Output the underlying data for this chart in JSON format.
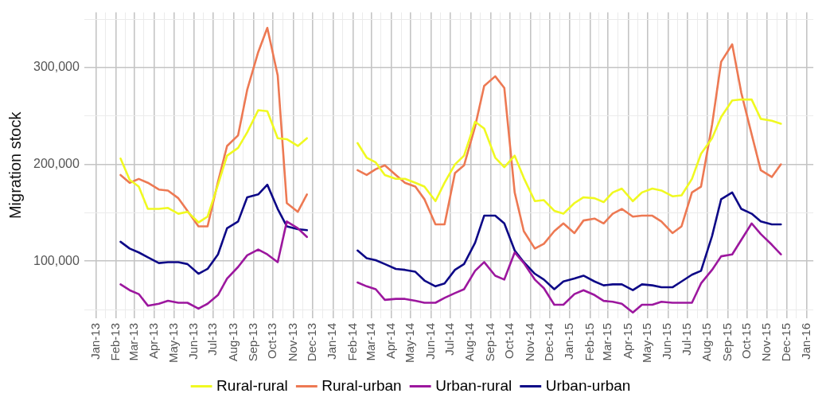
{
  "chart_data": {
    "type": "line",
    "x": [
      "2013-02-08",
      "2013-02-22",
      "2013-03-08",
      "2013-03-22",
      "2013-04-08",
      "2013-04-22",
      "2013-05-08",
      "2013-05-22",
      "2013-06-08",
      "2013-06-22",
      "2013-07-08",
      "2013-07-22",
      "2013-08-08",
      "2013-08-22",
      "2013-09-08",
      "2013-09-22",
      "2013-10-08",
      "2013-10-22",
      "2013-11-08",
      "2013-11-22",
      "2013-12-08",
      "2013-12-22",
      "2014-01-08",
      "2014-01-22",
      "2014-02-08",
      "2014-02-22",
      "2014-03-08",
      "2014-03-22",
      "2014-04-08",
      "2014-04-22",
      "2014-05-08",
      "2014-05-22",
      "2014-06-08",
      "2014-06-22",
      "2014-07-08",
      "2014-07-22",
      "2014-08-08",
      "2014-08-22",
      "2014-09-08",
      "2014-09-22",
      "2014-10-08",
      "2014-10-22",
      "2014-11-08",
      "2014-11-22",
      "2014-12-08",
      "2014-12-22",
      "2015-01-08",
      "2015-01-22",
      "2015-02-08",
      "2015-02-22",
      "2015-03-08",
      "2015-03-22",
      "2015-04-08",
      "2015-04-22",
      "2015-05-08",
      "2015-05-22",
      "2015-06-08",
      "2015-06-22",
      "2015-07-08",
      "2015-07-22",
      "2015-08-08",
      "2015-08-22",
      "2015-09-08",
      "2015-09-22",
      "2015-10-08",
      "2015-10-22",
      "2015-11-08",
      "2015-11-22"
    ],
    "series": [
      {
        "name": "Rural-rural",
        "color": "#f0f921",
        "values": [
          206000,
          184000,
          177000,
          154000,
          154000,
          155000,
          149000,
          151000,
          140000,
          146000,
          179000,
          209000,
          217000,
          233000,
          256000,
          255000,
          227000,
          226000,
          219000,
          227000,
          null,
          null,
          null,
          null,
          222000,
          207000,
          202000,
          189000,
          185000,
          185000,
          181000,
          177000,
          162000,
          181000,
          200000,
          209000,
          244000,
          237000,
          207000,
          197000,
          209000,
          186000,
          162000,
          163000,
          152000,
          149000,
          160000,
          166000,
          165000,
          161000,
          171000,
          175000,
          162000,
          171000,
          175000,
          173000,
          167000,
          168000,
          185000,
          211000,
          227000,
          249000,
          266000,
          267000,
          267000,
          247000,
          245000,
          242000
        ]
      },
      {
        "name": "Rural-urban",
        "color": "#ed7953",
        "values": [
          189000,
          181000,
          185000,
          181000,
          174000,
          173000,
          165000,
          152000,
          136000,
          136000,
          182000,
          219000,
          230000,
          277000,
          316000,
          341000,
          292000,
          160000,
          151000,
          169000,
          null,
          null,
          null,
          null,
          194000,
          189000,
          195000,
          199000,
          189000,
          181000,
          177000,
          164000,
          138000,
          138000,
          191000,
          199000,
          239000,
          281000,
          291000,
          279000,
          171000,
          131000,
          113000,
          118000,
          131000,
          139000,
          129000,
          142000,
          144000,
          139000,
          149000,
          154000,
          146000,
          147000,
          147000,
          141000,
          129000,
          136000,
          171000,
          177000,
          241000,
          306000,
          324000,
          274000,
          231000,
          194000,
          187000,
          200000
        ]
      },
      {
        "name": "Urban-rural",
        "color": "#9c179e",
        "values": [
          76000,
          70000,
          66000,
          54000,
          56000,
          59000,
          57000,
          57000,
          51000,
          56000,
          65000,
          82000,
          94000,
          106000,
          112000,
          107000,
          99000,
          141000,
          134000,
          125000,
          null,
          null,
          null,
          null,
          78000,
          74000,
          71000,
          60000,
          61000,
          61000,
          59000,
          57000,
          57000,
          62000,
          67000,
          71000,
          90000,
          99000,
          85000,
          81000,
          109000,
          98000,
          81000,
          72000,
          55000,
          55000,
          66000,
          70000,
          65000,
          59000,
          58000,
          56000,
          47000,
          55000,
          55000,
          58000,
          57000,
          57000,
          57000,
          77000,
          91000,
          105000,
          107000,
          122000,
          139000,
          128000,
          117000,
          107000
        ]
      },
      {
        "name": "Urban-urban",
        "color": "#0d0887",
        "values": [
          120000,
          113000,
          109000,
          104000,
          98000,
          99000,
          99000,
          97000,
          87000,
          92000,
          107000,
          134000,
          141000,
          166000,
          169000,
          179000,
          154000,
          136000,
          133000,
          132000,
          null,
          null,
          null,
          null,
          111000,
          103000,
          101000,
          97000,
          92000,
          91000,
          89000,
          80000,
          74000,
          77000,
          91000,
          97000,
          119000,
          147000,
          147000,
          139000,
          111000,
          99000,
          87000,
          81000,
          71000,
          79000,
          82000,
          85000,
          79000,
          75000,
          76000,
          76000,
          70000,
          76000,
          75000,
          73000,
          73000,
          79000,
          86000,
          90000,
          126000,
          164000,
          171000,
          154000,
          149000,
          141000,
          138000,
          138000
        ]
      }
    ],
    "ylabel": "Migration stock",
    "ylim": [
      41000,
      357000
    ],
    "yticks": [
      {
        "value": 50000,
        "label": null
      },
      {
        "value": 100000,
        "label": "100,000"
      },
      {
        "value": 150000,
        "label": null
      },
      {
        "value": 200000,
        "label": "200,000"
      },
      {
        "value": 250000,
        "label": null
      },
      {
        "value": 300000,
        "label": "300,000"
      },
      {
        "value": 350000,
        "label": null
      }
    ],
    "xlim": [
      "2012-12-14",
      "2016-01-11"
    ],
    "xticks": [
      {
        "value": "2013-01-01",
        "label": "Jan-13"
      },
      {
        "value": "2013-01-16",
        "label": null
      },
      {
        "value": "2013-02-01",
        "label": "Feb-13"
      },
      {
        "value": "2013-02-15",
        "label": null
      },
      {
        "value": "2013-03-01",
        "label": "Mar-13"
      },
      {
        "value": "2013-03-16",
        "label": null
      },
      {
        "value": "2013-04-01",
        "label": "Apr-13"
      },
      {
        "value": "2013-04-16",
        "label": null
      },
      {
        "value": "2013-05-01",
        "label": "May-13"
      },
      {
        "value": "2013-05-16",
        "label": null
      },
      {
        "value": "2013-06-01",
        "label": "Jun-13"
      },
      {
        "value": "2013-06-16",
        "label": null
      },
      {
        "value": "2013-07-01",
        "label": "Jul-13"
      },
      {
        "value": "2013-07-16",
        "label": null
      },
      {
        "value": "2013-08-01",
        "label": "Aug-13"
      },
      {
        "value": "2013-08-16",
        "label": null
      },
      {
        "value": "2013-09-01",
        "label": "Sep-13"
      },
      {
        "value": "2013-09-16",
        "label": null
      },
      {
        "value": "2013-10-01",
        "label": "Oct-13"
      },
      {
        "value": "2013-10-16",
        "label": null
      },
      {
        "value": "2013-11-01",
        "label": "Nov-13"
      },
      {
        "value": "2013-11-16",
        "label": null
      },
      {
        "value": "2013-12-01",
        "label": "Dec-13"
      },
      {
        "value": "2013-12-16",
        "label": null
      },
      {
        "value": "2014-01-01",
        "label": "Jan-14"
      },
      {
        "value": "2014-01-16",
        "label": null
      },
      {
        "value": "2014-02-01",
        "label": "Feb-14"
      },
      {
        "value": "2014-02-15",
        "label": null
      },
      {
        "value": "2014-03-01",
        "label": "Mar-14"
      },
      {
        "value": "2014-03-16",
        "label": null
      },
      {
        "value": "2014-04-01",
        "label": "Apr-14"
      },
      {
        "value": "2014-04-16",
        "label": null
      },
      {
        "value": "2014-05-01",
        "label": "May-14"
      },
      {
        "value": "2014-05-16",
        "label": null
      },
      {
        "value": "2014-06-01",
        "label": "Jun-14"
      },
      {
        "value": "2014-06-16",
        "label": null
      },
      {
        "value": "2014-07-01",
        "label": "Jul-14"
      },
      {
        "value": "2014-07-16",
        "label": null
      },
      {
        "value": "2014-08-01",
        "label": "Aug-14"
      },
      {
        "value": "2014-08-16",
        "label": null
      },
      {
        "value": "2014-09-01",
        "label": "Sep-14"
      },
      {
        "value": "2014-09-16",
        "label": null
      },
      {
        "value": "2014-10-01",
        "label": "Oct-14"
      },
      {
        "value": "2014-10-16",
        "label": null
      },
      {
        "value": "2014-11-01",
        "label": "Nov-14"
      },
      {
        "value": "2014-11-16",
        "label": null
      },
      {
        "value": "2014-12-01",
        "label": "Dec-14"
      },
      {
        "value": "2014-12-16",
        "label": null
      },
      {
        "value": "2015-01-01",
        "label": "Jan-15"
      },
      {
        "value": "2015-01-16",
        "label": null
      },
      {
        "value": "2015-02-01",
        "label": "Feb-15"
      },
      {
        "value": "2015-02-15",
        "label": null
      },
      {
        "value": "2015-03-01",
        "label": "Mar-15"
      },
      {
        "value": "2015-03-16",
        "label": null
      },
      {
        "value": "2015-04-01",
        "label": "Apr-15"
      },
      {
        "value": "2015-04-16",
        "label": null
      },
      {
        "value": "2015-05-01",
        "label": "May-15"
      },
      {
        "value": "2015-05-16",
        "label": null
      },
      {
        "value": "2015-06-01",
        "label": "Jun-15"
      },
      {
        "value": "2015-06-16",
        "label": null
      },
      {
        "value": "2015-07-01",
        "label": "Jul-15"
      },
      {
        "value": "2015-07-16",
        "label": null
      },
      {
        "value": "2015-08-01",
        "label": "Aug-15"
      },
      {
        "value": "2015-08-16",
        "label": null
      },
      {
        "value": "2015-09-01",
        "label": "Sep-15"
      },
      {
        "value": "2015-09-16",
        "label": null
      },
      {
        "value": "2015-10-01",
        "label": "Oct-15"
      },
      {
        "value": "2015-10-16",
        "label": null
      },
      {
        "value": "2015-11-01",
        "label": "Nov-15"
      },
      {
        "value": "2015-11-16",
        "label": null
      },
      {
        "value": "2015-12-01",
        "label": "Dec-15"
      },
      {
        "value": "2015-12-16",
        "label": null
      },
      {
        "value": "2016-01-01",
        "label": "Jan-16"
      }
    ],
    "grid": true,
    "legend": "bottom",
    "marker": "none",
    "line_style": "solid"
  }
}
